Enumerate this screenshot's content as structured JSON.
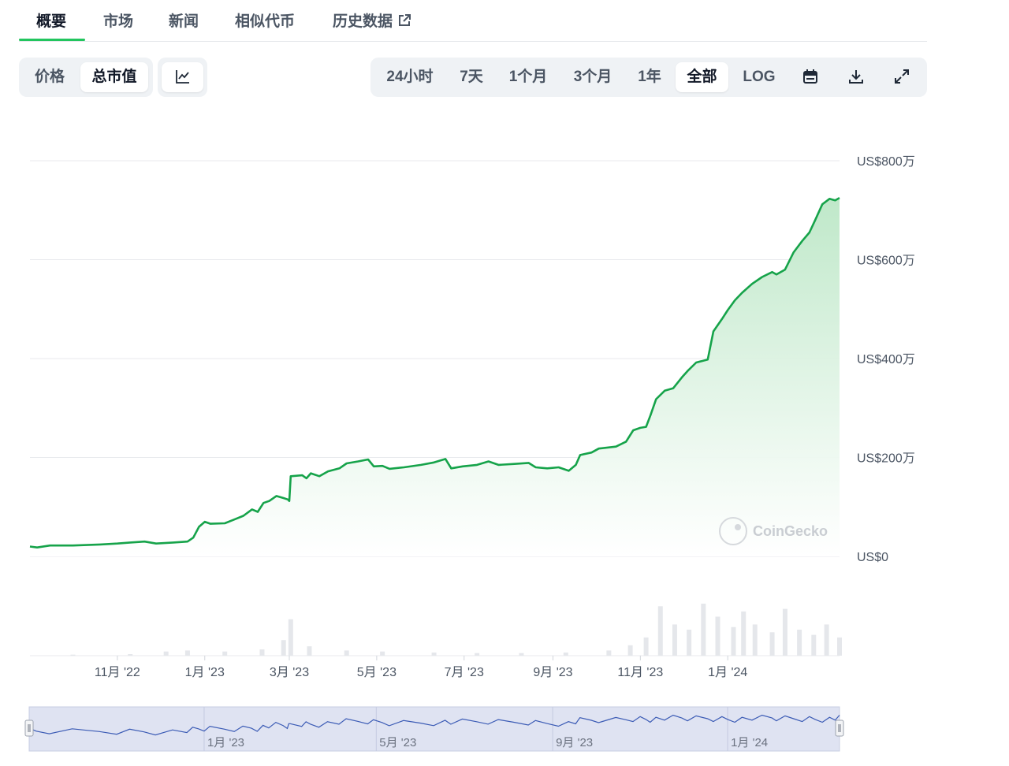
{
  "tabs": [
    {
      "label": "概要",
      "active": true
    },
    {
      "label": "市场"
    },
    {
      "label": "新闻"
    },
    {
      "label": "相似代币"
    },
    {
      "label": "历史数据",
      "external": true
    }
  ],
  "toolbar_left": {
    "price_label": "价格",
    "market_cap_label": "总市值",
    "selected": "总市值",
    "chart_type_icon": "line-chart-icon"
  },
  "toolbar_right": {
    "ranges": [
      "24小时",
      "7天",
      "1个月",
      "3个月",
      "1年",
      "全部"
    ],
    "selected_range": "全部",
    "log_label": "LOG",
    "icons": [
      "calendar-icon",
      "download-icon",
      "fullscreen-icon"
    ]
  },
  "watermark": "CoinGecko",
  "colors": {
    "line": "#16a34a",
    "area_top": "#bfe8c9",
    "area_bottom": "#ffffff",
    "volume": "#e5e7eb",
    "navigator_line": "#3b5bb5",
    "navigator_mask": "#dfe3f2",
    "active_tab_underline": "#22c55e"
  },
  "chart_data": {
    "type": "area",
    "y_unit": "万 USD",
    "ylim": [
      0,
      800
    ],
    "yticks": [
      0,
      200,
      400,
      600,
      800
    ],
    "ytick_labels": [
      "US$0",
      "US$200万",
      "US$400万",
      "US$600万",
      "US$800万"
    ],
    "xlim": [
      "2022-09-01",
      "2024-03-19"
    ],
    "xticks": [
      {
        "date": "2022-11-01",
        "label": "11月 '22"
      },
      {
        "date": "2023-01-01",
        "label": "1月 '23"
      },
      {
        "date": "2023-03-01",
        "label": "3月 '23"
      },
      {
        "date": "2023-05-01",
        "label": "5月 '23"
      },
      {
        "date": "2023-07-01",
        "label": "7月 '23"
      },
      {
        "date": "2023-09-01",
        "label": "9月 '23"
      },
      {
        "date": "2023-11-01",
        "label": "11月 '23"
      },
      {
        "date": "2024-01-01",
        "label": "1月 '24"
      }
    ],
    "grid": true,
    "series": [
      {
        "values": [
          [
            "2022-09-01",
            20
          ],
          [
            "2022-09-06",
            18
          ],
          [
            "2022-09-15",
            22
          ],
          [
            "2022-10-01",
            22
          ],
          [
            "2022-10-20",
            24
          ],
          [
            "2022-11-01",
            26
          ],
          [
            "2022-11-10",
            28
          ],
          [
            "2022-11-20",
            30
          ],
          [
            "2022-11-28",
            26
          ],
          [
            "2022-12-10",
            28
          ],
          [
            "2022-12-20",
            30
          ],
          [
            "2022-12-24",
            38
          ],
          [
            "2022-12-28",
            60
          ],
          [
            "2023-01-01",
            70
          ],
          [
            "2023-01-05",
            66
          ],
          [
            "2023-01-15",
            67
          ],
          [
            "2023-01-22",
            75
          ],
          [
            "2023-01-28",
            82
          ],
          [
            "2023-02-03",
            95
          ],
          [
            "2023-02-07",
            90
          ],
          [
            "2023-02-11",
            108
          ],
          [
            "2023-02-15",
            112
          ],
          [
            "2023-02-20",
            122
          ],
          [
            "2023-02-25",
            118
          ],
          [
            "2023-02-28",
            115
          ],
          [
            "2023-03-01",
            112
          ],
          [
            "2023-03-02",
            162
          ],
          [
            "2023-03-10",
            164
          ],
          [
            "2023-03-13",
            158
          ],
          [
            "2023-03-16",
            168
          ],
          [
            "2023-03-22",
            162
          ],
          [
            "2023-03-28",
            172
          ],
          [
            "2023-04-05",
            178
          ],
          [
            "2023-04-10",
            188
          ],
          [
            "2023-04-18",
            192
          ],
          [
            "2023-04-25",
            196
          ],
          [
            "2023-04-29",
            182
          ],
          [
            "2023-05-05",
            183
          ],
          [
            "2023-05-10",
            177
          ],
          [
            "2023-05-20",
            180
          ],
          [
            "2023-06-01",
            185
          ],
          [
            "2023-06-10",
            190
          ],
          [
            "2023-06-18",
            197
          ],
          [
            "2023-06-22",
            178
          ],
          [
            "2023-06-30",
            182
          ],
          [
            "2023-07-10",
            185
          ],
          [
            "2023-07-18",
            192
          ],
          [
            "2023-07-25",
            185
          ],
          [
            "2023-08-05",
            187
          ],
          [
            "2023-08-15",
            189
          ],
          [
            "2023-08-20",
            180
          ],
          [
            "2023-08-28",
            178
          ],
          [
            "2023-09-05",
            180
          ],
          [
            "2023-09-12",
            173
          ],
          [
            "2023-09-17",
            185
          ],
          [
            "2023-09-20",
            205
          ],
          [
            "2023-09-28",
            210
          ],
          [
            "2023-10-03",
            218
          ],
          [
            "2023-10-15",
            222
          ],
          [
            "2023-10-22",
            232
          ],
          [
            "2023-10-27",
            255
          ],
          [
            "2023-11-01",
            260
          ],
          [
            "2023-11-05",
            262
          ],
          [
            "2023-11-08",
            285
          ],
          [
            "2023-11-12",
            318
          ],
          [
            "2023-11-18",
            335
          ],
          [
            "2023-11-24",
            340
          ],
          [
            "2023-11-30",
            362
          ],
          [
            "2023-12-04",
            375
          ],
          [
            "2023-12-10",
            392
          ],
          [
            "2023-12-18",
            398
          ],
          [
            "2023-12-22",
            455
          ],
          [
            "2023-12-28",
            480
          ],
          [
            "2024-01-01",
            498
          ],
          [
            "2024-01-06",
            518
          ],
          [
            "2024-01-11",
            533
          ],
          [
            "2024-01-18",
            551
          ],
          [
            "2024-01-25",
            565
          ],
          [
            "2024-02-01",
            575
          ],
          [
            "2024-02-04",
            570
          ],
          [
            "2024-02-10",
            580
          ],
          [
            "2024-02-16",
            615
          ],
          [
            "2024-02-22",
            638
          ],
          [
            "2024-02-27",
            655
          ],
          [
            "2024-03-02",
            680
          ],
          [
            "2024-03-07",
            712
          ],
          [
            "2024-03-12",
            723
          ],
          [
            "2024-03-16",
            720
          ],
          [
            "2024-03-19",
            725
          ]
        ]
      }
    ],
    "volume": {
      "note": "relative trading volume bars (0-100 scale)",
      "values": [
        [
          "2022-10-01",
          2
        ],
        [
          "2022-11-10",
          3
        ],
        [
          "2022-12-05",
          8
        ],
        [
          "2022-12-20",
          10
        ],
        [
          "2023-01-15",
          8
        ],
        [
          "2023-02-10",
          12
        ],
        [
          "2023-02-25",
          30
        ],
        [
          "2023-03-02",
          70
        ],
        [
          "2023-03-15",
          18
        ],
        [
          "2023-04-10",
          10
        ],
        [
          "2023-05-05",
          8
        ],
        [
          "2023-06-10",
          6
        ],
        [
          "2023-07-10",
          5
        ],
        [
          "2023-08-10",
          5
        ],
        [
          "2023-09-10",
          6
        ],
        [
          "2023-10-10",
          10
        ],
        [
          "2023-10-25",
          20
        ],
        [
          "2023-11-05",
          35
        ],
        [
          "2023-11-15",
          95
        ],
        [
          "2023-11-25",
          60
        ],
        [
          "2023-12-05",
          50
        ],
        [
          "2023-12-15",
          100
        ],
        [
          "2023-12-25",
          75
        ],
        [
          "2024-01-05",
          55
        ],
        [
          "2024-01-12",
          85
        ],
        [
          "2024-01-20",
          60
        ],
        [
          "2024-02-01",
          45
        ],
        [
          "2024-02-10",
          90
        ],
        [
          "2024-02-20",
          50
        ],
        [
          "2024-03-01",
          40
        ],
        [
          "2024-03-10",
          60
        ],
        [
          "2024-03-19",
          35
        ]
      ]
    },
    "navigator": {
      "xticks": [
        {
          "date": "2023-01-01",
          "label": "1月 '23"
        },
        {
          "date": "2023-05-01",
          "label": "5月 '23"
        },
        {
          "date": "2023-09-01",
          "label": "9月 '23"
        },
        {
          "date": "2024-01-01",
          "label": "1月 '24"
        }
      ],
      "xlim": [
        "2022-09-01",
        "2024-03-19"
      ]
    }
  }
}
